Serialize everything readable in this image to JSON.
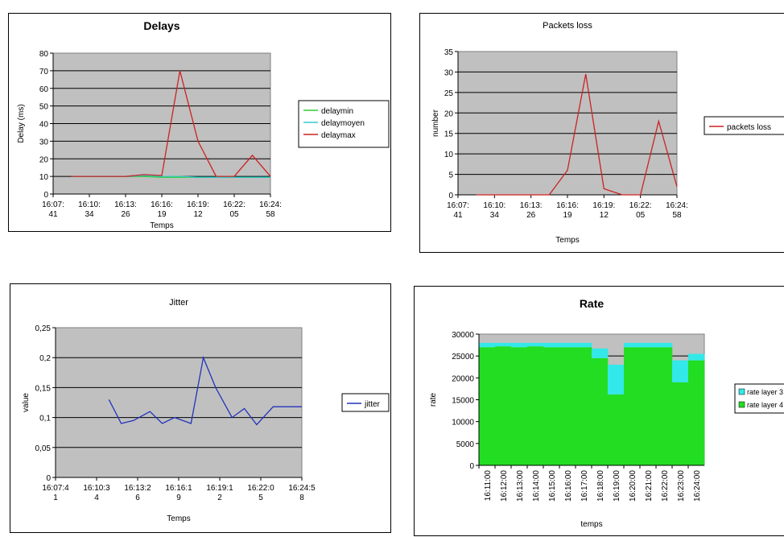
{
  "chart_data": [
    {
      "type": "line",
      "title": "Delays",
      "xlabel": "Temps",
      "ylabel": "Delay (ms)",
      "ylim": [
        0,
        80
      ],
      "yticks": [
        "0",
        "10",
        "20",
        "30",
        "40",
        "50",
        "60",
        "70",
        "80"
      ],
      "xtick_labels": [
        [
          "16:07:",
          "41"
        ],
        [
          "16:10:",
          "34"
        ],
        [
          "16:13:",
          "26"
        ],
        [
          "16:16:",
          "19"
        ],
        [
          "16:19:",
          "12"
        ],
        [
          "16:22:",
          "05"
        ],
        [
          "16:24:",
          "58"
        ]
      ],
      "legend": "right",
      "grid": true,
      "series": [
        {
          "name": "delaymin",
          "color": "#33cc33",
          "x": [
            0.5,
            1,
            1.5,
            2,
            2.5,
            3,
            3.5,
            4,
            4.5,
            5,
            5.5,
            6
          ],
          "values": [
            10,
            10,
            10,
            10,
            10,
            9.5,
            9.5,
            9.5,
            9.5,
            9.5,
            9.5,
            9.5
          ]
        },
        {
          "name": "delaymoyen",
          "color": "#33cccc",
          "x": [
            0.5,
            1,
            1.5,
            2,
            2.5,
            3,
            3.5,
            4,
            4.5,
            5,
            5.5,
            6
          ],
          "values": [
            10,
            10,
            10,
            10,
            10.5,
            10,
            10,
            9.5,
            9.5,
            9.5,
            9.5,
            9.5
          ]
        },
        {
          "name": "delaymax",
          "color": "#cc2222",
          "x": [
            0.5,
            1,
            1.5,
            2,
            2.5,
            3,
            3.5,
            4,
            4.5,
            5,
            5.5,
            6
          ],
          "values": [
            10,
            10,
            10,
            10,
            11,
            10.5,
            70,
            30,
            10,
            10,
            22,
            10
          ]
        }
      ]
    },
    {
      "type": "line",
      "title": "Packets loss",
      "xlabel": "Temps",
      "ylabel": "number",
      "ylim": [
        0,
        35
      ],
      "yticks": [
        "0",
        "5",
        "10",
        "15",
        "20",
        "25",
        "30",
        "35"
      ],
      "xtick_labels": [
        [
          "16:07:",
          "41"
        ],
        [
          "16:10:",
          "34"
        ],
        [
          "16:13:",
          "26"
        ],
        [
          "16:16:",
          "19"
        ],
        [
          "16:19:",
          "12"
        ],
        [
          "16:22:",
          "05"
        ],
        [
          "16:24:",
          "58"
        ]
      ],
      "legend": "right",
      "grid": true,
      "series": [
        {
          "name": "packets loss",
          "color": "#cc2222",
          "x": [
            0.5,
            1,
            1.5,
            2,
            2.5,
            3,
            3.5,
            4,
            4.5,
            5,
            5.5,
            6
          ],
          "values": [
            0,
            0,
            0,
            0,
            0,
            6,
            29.5,
            1.5,
            0,
            0,
            18,
            2
          ]
        }
      ]
    },
    {
      "type": "line",
      "title": "Jitter",
      "xlabel": "Temps",
      "ylabel": "value",
      "ylim": [
        0,
        0.25
      ],
      "yticks": [
        "0",
        "0,05",
        "0,1",
        "0,15",
        "0,2",
        "0,25"
      ],
      "xtick_labels": [
        [
          "16:07:4",
          "1"
        ],
        [
          "16:10:3",
          "4"
        ],
        [
          "16:13:2",
          "6"
        ],
        [
          "16:16:1",
          "9"
        ],
        [
          "16:19:1",
          "2"
        ],
        [
          "16:22:0",
          "5"
        ],
        [
          "16:24:5",
          "8"
        ]
      ],
      "legend": "right",
      "grid": true,
      "series": [
        {
          "name": "jitter",
          "color": "#2233bb",
          "x": [
            1.3,
            1.6,
            1.9,
            2.3,
            2.6,
            2.9,
            3.3,
            3.6,
            3.9,
            4.3,
            4.6,
            4.9,
            5.3,
            5.6,
            6
          ],
          "values": [
            0.13,
            0.09,
            0.095,
            0.11,
            0.09,
            0.1,
            0.09,
            0.2,
            0.15,
            0.1,
            0.115,
            0.088,
            0.118,
            0.118,
            0.118
          ]
        }
      ]
    },
    {
      "type": "bar",
      "title": "Rate",
      "xlabel": "temps",
      "ylabel": "rate",
      "ylim": [
        0,
        30000
      ],
      "yticks": [
        "0",
        "5000",
        "10000",
        "15000",
        "20000",
        "25000",
        "30000"
      ],
      "categories": [
        "16:11:00",
        "16:12:00",
        "16:13:00",
        "16:14:00",
        "16:15:00",
        "16:16:00",
        "16:17:00",
        "16:18:00",
        "16:19:00",
        "16:20:00",
        "16:21:00",
        "16:22:00",
        "16:23:00",
        "16:24:00"
      ],
      "legend": "right",
      "grid": true,
      "series": [
        {
          "name": "rate layer 4",
          "color": "#22dd22",
          "values": [
            27000,
            27200,
            27000,
            27200,
            27000,
            27000,
            27000,
            24500,
            16200,
            27000,
            27000,
            27000,
            19000,
            24000
          ]
        },
        {
          "name": "rate layer 3",
          "color": "#33e8e8",
          "values": [
            1000,
            800,
            1000,
            800,
            1000,
            1000,
            1000,
            2200,
            6800,
            1000,
            1000,
            1000,
            5000,
            1500
          ]
        }
      ]
    }
  ]
}
